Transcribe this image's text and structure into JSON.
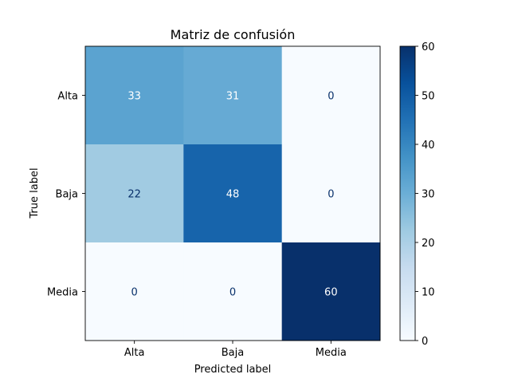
{
  "chart_data": {
    "type": "heatmap",
    "title": "Matriz de confusión",
    "xlabel": "Predicted label",
    "ylabel": "True label",
    "x_categories": [
      "Alta",
      "Baja",
      "Media"
    ],
    "y_categories": [
      "Alta",
      "Baja",
      "Media"
    ],
    "values": [
      [
        33,
        31,
        0
      ],
      [
        22,
        48,
        0
      ],
      [
        0,
        0,
        60
      ]
    ],
    "colormap": "Blues",
    "colormap_stops": [
      "#f7fbff",
      "#deebf7",
      "#c6dbef",
      "#9ecae1",
      "#6baed6",
      "#4292c6",
      "#2171b5",
      "#08519c",
      "#08306b"
    ],
    "value_range": [
      0,
      60
    ],
    "colorbar_ticks": [
      0,
      10,
      20,
      30,
      40,
      50,
      60
    ],
    "grid": false,
    "legend": "colorbar-right"
  }
}
